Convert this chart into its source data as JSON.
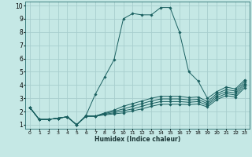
{
  "xlabel": "Humidex (Indice chaleur)",
  "bg_color": "#c5e8e5",
  "grid_color": "#a8cece",
  "line_color": "#1a6060",
  "xlim": [
    -0.5,
    23.5
  ],
  "ylim": [
    0.7,
    10.3
  ],
  "xticks": [
    0,
    1,
    2,
    3,
    4,
    5,
    6,
    7,
    8,
    9,
    10,
    11,
    12,
    13,
    14,
    15,
    16,
    17,
    18,
    19,
    20,
    21,
    22,
    23
  ],
  "yticks": [
    1,
    2,
    3,
    4,
    5,
    6,
    7,
    8,
    9,
    10
  ],
  "lines": [
    {
      "x": [
        0,
        1,
        2,
        3,
        4,
        5,
        6,
        7,
        8,
        9,
        10,
        11,
        12,
        13,
        14,
        15,
        16,
        17,
        18,
        19,
        20,
        21,
        22,
        23
      ],
      "y": [
        2.3,
        1.4,
        1.4,
        1.5,
        1.6,
        1.0,
        1.7,
        3.3,
        4.6,
        5.9,
        9.0,
        9.4,
        9.3,
        9.3,
        9.85,
        9.85,
        8.0,
        5.0,
        4.3,
        3.0,
        3.5,
        3.85,
        3.7,
        4.4
      ]
    },
    {
      "x": [
        0,
        1,
        2,
        3,
        4,
        5,
        6,
        7,
        8,
        9,
        10,
        11,
        12,
        13,
        14,
        15,
        16,
        17,
        18,
        19,
        20,
        21,
        22,
        23
      ],
      "y": [
        2.3,
        1.4,
        1.4,
        1.5,
        1.6,
        1.0,
        1.65,
        1.65,
        1.9,
        2.1,
        2.4,
        2.6,
        2.8,
        3.0,
        3.15,
        3.15,
        3.15,
        3.05,
        3.1,
        2.75,
        3.35,
        3.65,
        3.55,
        4.25
      ]
    },
    {
      "x": [
        0,
        1,
        2,
        3,
        4,
        5,
        6,
        7,
        8,
        9,
        10,
        11,
        12,
        13,
        14,
        15,
        16,
        17,
        18,
        19,
        20,
        21,
        22,
        23
      ],
      "y": [
        2.3,
        1.4,
        1.4,
        1.5,
        1.6,
        1.0,
        1.65,
        1.65,
        1.85,
        2.0,
        2.2,
        2.4,
        2.6,
        2.8,
        2.95,
        2.95,
        2.95,
        2.88,
        2.92,
        2.6,
        3.2,
        3.5,
        3.4,
        4.1
      ]
    },
    {
      "x": [
        0,
        1,
        2,
        3,
        4,
        5,
        6,
        7,
        8,
        9,
        10,
        11,
        12,
        13,
        14,
        15,
        16,
        17,
        18,
        19,
        20,
        21,
        22,
        23
      ],
      "y": [
        2.3,
        1.4,
        1.4,
        1.5,
        1.6,
        1.0,
        1.65,
        1.65,
        1.8,
        1.9,
        2.05,
        2.2,
        2.4,
        2.6,
        2.75,
        2.75,
        2.75,
        2.7,
        2.75,
        2.48,
        3.05,
        3.35,
        3.25,
        3.95
      ]
    },
    {
      "x": [
        0,
        1,
        2,
        3,
        4,
        5,
        6,
        7,
        8,
        9,
        10,
        11,
        12,
        13,
        14,
        15,
        16,
        17,
        18,
        19,
        20,
        21,
        22,
        23
      ],
      "y": [
        2.3,
        1.4,
        1.4,
        1.5,
        1.6,
        1.0,
        1.65,
        1.65,
        1.75,
        1.82,
        1.9,
        2.05,
        2.2,
        2.4,
        2.55,
        2.55,
        2.55,
        2.52,
        2.57,
        2.35,
        2.9,
        3.2,
        3.1,
        3.8
      ]
    }
  ]
}
